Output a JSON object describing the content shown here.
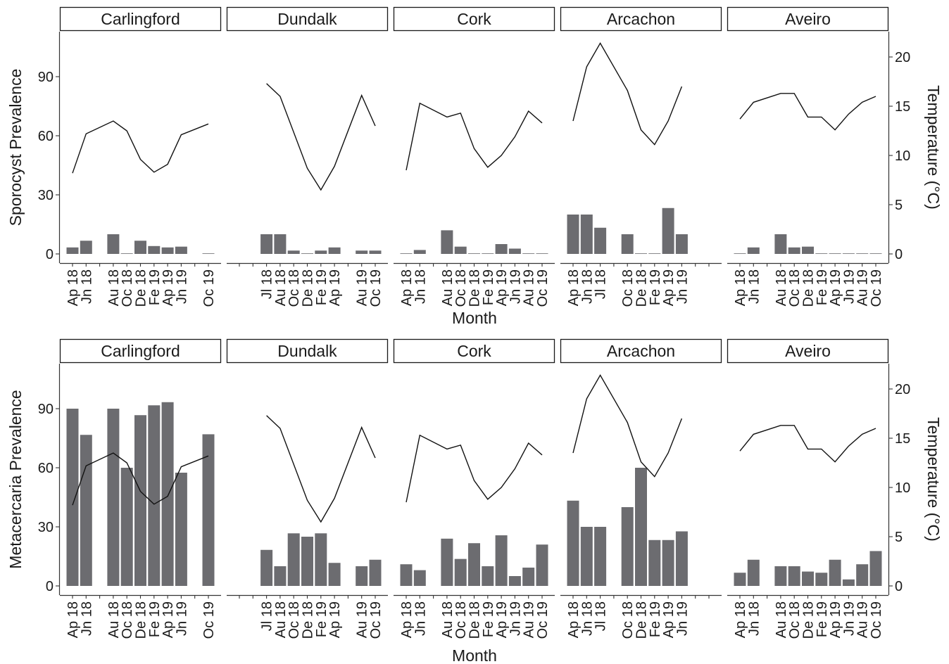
{
  "chart_data": {
    "type": "bar",
    "description_free_note": "",
    "months": [
      "Ap 18",
      "Jn 18",
      "Jl 18",
      "Au 18",
      "Oc 18",
      "De 18",
      "Fe 19",
      "Ap 19",
      "Jn 19",
      "Au 19",
      "Oc 19"
    ],
    "sites": [
      "Carlingford",
      "Dundalk",
      "Cork",
      "Arcachon",
      "Aveiro"
    ],
    "xlabel": "Month",
    "y_left_ticks": [
      0,
      30,
      60,
      90
    ],
    "y_right_ticks": [
      0,
      5,
      10,
      15,
      20
    ],
    "y_right_label": "Temperature (°C)",
    "temperature_ylim": [
      0,
      22.5
    ],
    "prevalence_ylim": [
      0,
      113
    ],
    "temperature": {
      "Carlingford": [
        8.2,
        12.2,
        null,
        13.5,
        12.5,
        9.6,
        8.3,
        9.1,
        12.1,
        null,
        13.2
      ],
      "Dundalk": [
        null,
        null,
        17.3,
        16.0,
        null,
        8.7,
        6.5,
        8.9,
        null,
        16.1,
        13.0
      ],
      "Cork": [
        8.5,
        15.3,
        null,
        13.9,
        14.3,
        10.7,
        8.8,
        10.0,
        11.9,
        14.5,
        13.3
      ],
      "Arcachon": [
        13.5,
        19.0,
        21.4,
        null,
        16.6,
        12.6,
        11.1,
        13.5,
        17.0,
        null,
        null
      ],
      "Aveiro": [
        13.7,
        15.4,
        null,
        16.3,
        16.3,
        13.9,
        13.9,
        12.6,
        14.2,
        15.4,
        16.0
      ]
    },
    "panels": [
      {
        "ylabel": "Sporocyst Prevalence",
        "x_tick_labels": {
          "Carlingford": [
            "Ap 18",
            "Jn 18",
            "Au 18",
            "Oc 18",
            "De 18",
            "Fe 19",
            "Ap 19",
            "Jn 19",
            "Oc 19"
          ],
          "Dundalk": [
            "Jl 18",
            "Au 18",
            "Oc 18",
            "De 18",
            "Fe 19",
            "Ap 19",
            "Au 19",
            "Oc 19"
          ],
          "Cork": [
            "Ap 18",
            "Jn 18",
            "Au 18",
            "Oc 18",
            "De 18",
            "Fe 19",
            "Ap 19",
            "Jn 19",
            "Au 19",
            "Oc 19"
          ],
          "Arcachon": [
            "Ap 18",
            "Jn 18",
            "Jl 18",
            "Oc 18",
            "De 18",
            "Fe 19",
            "Ap 19",
            "Jn 19"
          ],
          "Aveiro": [
            "Ap 18",
            "Jn 18",
            "Au 18",
            "Oc 18",
            "De 18",
            "Fe 19",
            "Ap 19",
            "Jn 19",
            "Au 19",
            "Oc 19"
          ]
        },
        "prevalence": {
          "Carlingford": [
            3.3,
            6.7,
            null,
            10.0,
            0.0,
            6.7,
            4.0,
            3.3,
            3.7,
            null,
            0.0
          ],
          "Dundalk": [
            null,
            null,
            10.0,
            10.0,
            1.7,
            0.0,
            1.7,
            3.3,
            null,
            1.7,
            1.7
          ],
          "Cork": [
            0.0,
            2.0,
            null,
            12.0,
            3.7,
            0.0,
            0.0,
            5.0,
            2.7,
            0.0,
            0.0
          ],
          "Arcachon": [
            20.0,
            20.0,
            13.3,
            null,
            10.0,
            0.0,
            0.0,
            23.3,
            10.0,
            null,
            null
          ],
          "Aveiro": [
            0.0,
            3.3,
            null,
            10.0,
            3.3,
            3.7,
            0.0,
            0.0,
            0.0,
            0.0,
            0.0
          ]
        }
      },
      {
        "ylabel": "Metacercaria Prevalence",
        "x_tick_labels": {
          "Carlingford": [
            "Ap 18",
            "Jn 18",
            "Au 18",
            "Oc 18",
            "De 18",
            "Fe 19",
            "Ap 19",
            "Jn 19",
            "Oc 19"
          ],
          "Dundalk": [
            "Jl 18",
            "Au 18",
            "Oc 18",
            "De 18",
            "Fe 19",
            "Ap 19",
            "Au 19",
            "Oc 19"
          ],
          "Cork": [
            "Ap 18",
            "Jn 18",
            "Au 18",
            "Oc 18",
            "De 18",
            "Fe 19",
            "Ap 19",
            "Jn 19",
            "Au 19",
            "Oc 19"
          ],
          "Arcachon": [
            "Ap 18",
            "Jn 18",
            "Jl 18",
            "Oc 18",
            "De 18",
            "Fe 19",
            "Ap 19",
            "Jn 19"
          ],
          "Aveiro": [
            "Ap 18",
            "Jn 18",
            "Au 18",
            "Oc 18",
            "De 18",
            "Fe 19",
            "Ap 19",
            "Jn 19",
            "Au 19",
            "Oc 19"
          ]
        },
        "prevalence": {
          "Carlingford": [
            90.0,
            76.7,
            null,
            90.0,
            60.0,
            86.7,
            91.7,
            93.3,
            57.5,
            null,
            77.0
          ],
          "Dundalk": [
            null,
            null,
            18.3,
            10.0,
            26.7,
            25.0,
            26.7,
            11.7,
            null,
            10.0,
            13.3
          ],
          "Cork": [
            11.0,
            8.0,
            null,
            24.0,
            13.7,
            21.7,
            10.0,
            25.7,
            5.0,
            9.3,
            21.0
          ],
          "Arcachon": [
            43.3,
            30.0,
            30.0,
            null,
            40.0,
            60.0,
            23.3,
            23.3,
            27.7,
            null,
            null
          ],
          "Aveiro": [
            6.7,
            13.3,
            null,
            10.0,
            10.0,
            7.3,
            6.7,
            13.3,
            3.3,
            11.0,
            17.7
          ]
        }
      }
    ]
  }
}
